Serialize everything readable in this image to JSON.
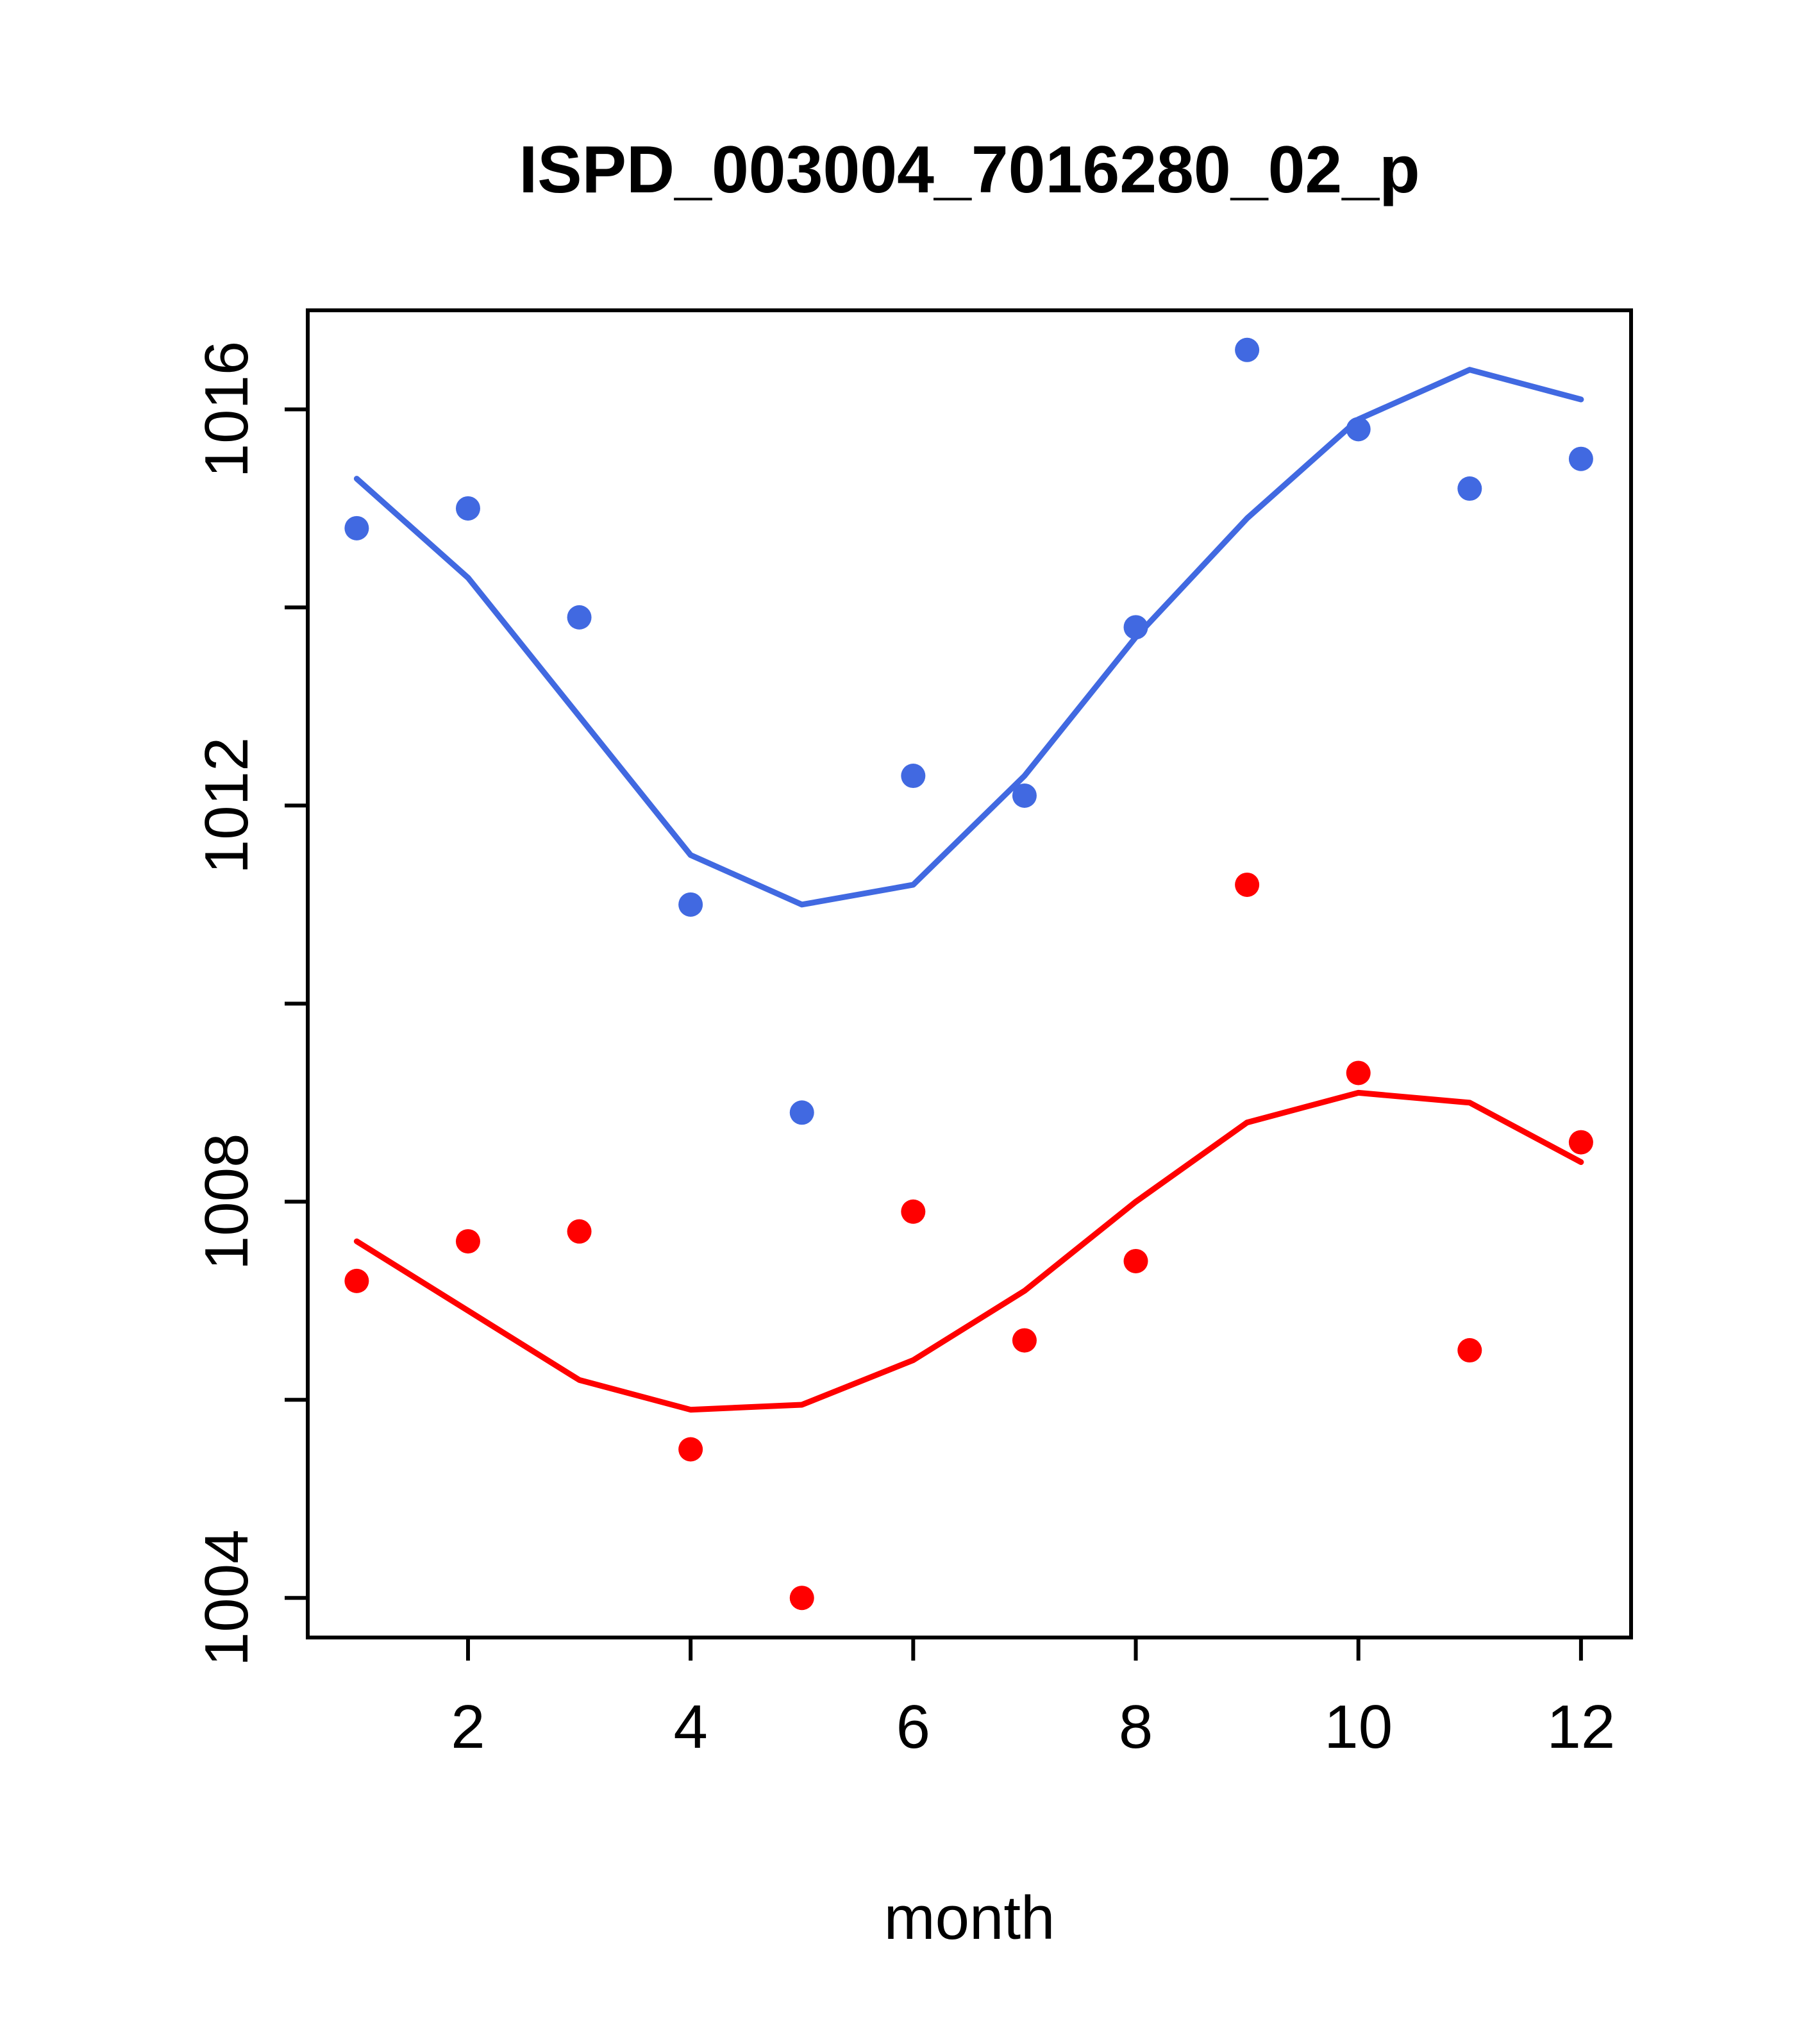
{
  "chart_data": {
    "type": "scatter",
    "title": "ISPD_003004_7016280_02_p",
    "xlabel": "month",
    "ylabel": "",
    "grid": "off",
    "legend": "none",
    "x": [
      1,
      2,
      3,
      4,
      5,
      6,
      7,
      8,
      9,
      10,
      11,
      12
    ],
    "xticks": [
      2,
      4,
      6,
      8,
      10,
      12
    ],
    "yticks_labeled": [
      1004,
      1008,
      1012,
      1016
    ],
    "yticks_unlabeled": [
      1006,
      1010,
      1014
    ],
    "xlim": [
      0.56,
      12.45
    ],
    "ylim": [
      1003.6,
      1017.0
    ],
    "series": [
      {
        "name": "blue-series",
        "color": "#4169E1",
        "style": "points-with-smooth-line",
        "values": [
          1014.8,
          1015.0,
          1013.9,
          1011.0,
          1008.9,
          1012.3,
          1012.1,
          1013.8,
          1016.6,
          1015.8,
          1015.2,
          1015.5
        ],
        "trend": [
          1015.3,
          1014.3,
          1012.9,
          1011.5,
          1011.0,
          1011.2,
          1012.3,
          1013.7,
          1014.9,
          1015.9,
          1016.4,
          1016.1
        ]
      },
      {
        "name": "red-series",
        "color": "#FF0000",
        "style": "points-with-smooth-line",
        "values": [
          1007.2,
          1007.6,
          1007.7,
          1005.5,
          1004.0,
          1007.9,
          1006.6,
          1007.4,
          1011.2,
          1009.3,
          1006.5,
          1008.6
        ],
        "trend": [
          1007.6,
          1006.9,
          1006.2,
          1005.9,
          1005.95,
          1006.4,
          1007.1,
          1008.0,
          1008.8,
          1009.1,
          1009.0,
          1008.4
        ]
      }
    ]
  }
}
